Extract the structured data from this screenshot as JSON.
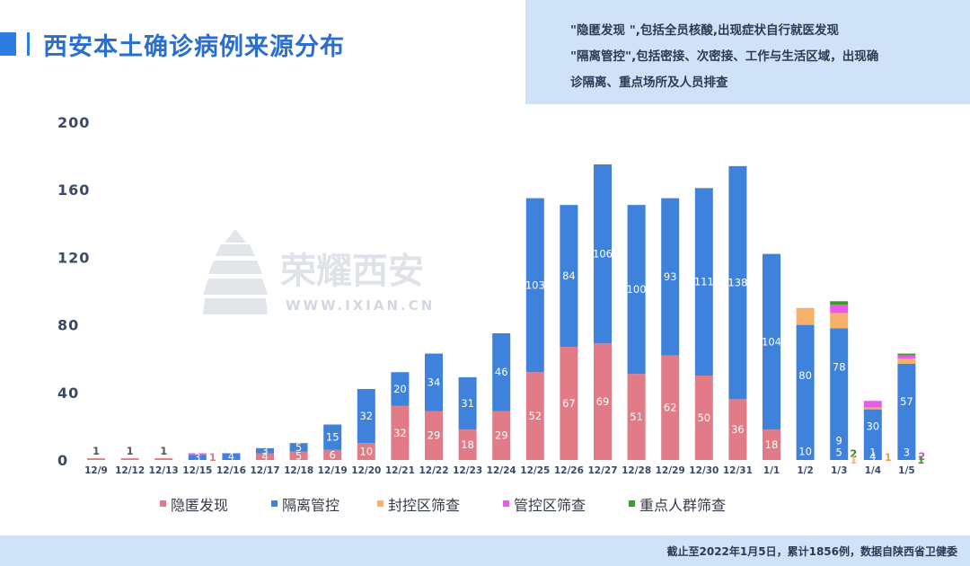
{
  "title": "西安本土确诊病例来源分布",
  "notes": [
    "\"隐匿发现 \",包括全员核酸,出现症状自行就医发现",
    "\"隔离管控\",包括密接、次密接、工作与生活区域，出现确",
    "诊隔离、重点场所及人员排查"
  ],
  "footer": "截止至2022年1月5日，累计1856例，数据自陕西省卫健委",
  "watermark": {
    "name": "荣耀西安",
    "url": "WWW.IXIAN.CN"
  },
  "colors": {
    "hidden": "#e07b87",
    "isolation": "#3e82db",
    "sealed": "#f5b16a",
    "controlled": "#e95ce8",
    "key": "#3f9a2f"
  },
  "chart_data": {
    "type": "bar",
    "stacked": true,
    "categories": [
      "12/9",
      "12/12",
      "12/13",
      "12/15",
      "12/16",
      "12/17",
      "12/18",
      "12/19",
      "12/20",
      "12/21",
      "12/22",
      "12/23",
      "12/24",
      "12/25",
      "12/26",
      "12/27",
      "12/28",
      "12/29",
      "12/30",
      "12/31",
      "1/1",
      "1/2",
      "1/3",
      "1/4",
      "1/5"
    ],
    "series": [
      {
        "name": "隐匿发现",
        "key": "hidden",
        "values": [
          1,
          1,
          1,
          0,
          0,
          4,
          5,
          6,
          10,
          32,
          29,
          18,
          29,
          52,
          67,
          69,
          51,
          62,
          50,
          36,
          18,
          0,
          0,
          0,
          0
        ],
        "labels": [
          "1",
          "1",
          "1",
          "",
          "",
          "4",
          "5",
          "6",
          "10",
          "32",
          "29",
          "18",
          "29",
          "52",
          "67",
          "69",
          "51",
          "62",
          "50",
          "36",
          "18",
          "",
          "",
          "",
          ""
        ]
      },
      {
        "name": "隔离管控",
        "key": "isolation",
        "values": [
          0,
          0,
          0,
          3,
          4,
          3,
          5,
          15,
          32,
          20,
          34,
          31,
          46,
          103,
          84,
          106,
          100,
          93,
          111,
          138,
          104,
          80,
          78,
          30,
          57
        ],
        "labels": [
          "",
          "",
          "",
          "3",
          "4",
          "3",
          "5",
          "15",
          "32",
          "20",
          "34",
          "31",
          "46",
          "103",
          "84",
          "106",
          "100",
          "93",
          "111",
          "138",
          "104",
          "80",
          "78",
          "30",
          "57"
        ]
      },
      {
        "name": "封控区筛查",
        "key": "sealed",
        "values": [
          0,
          0,
          0,
          0,
          0,
          0,
          0,
          0,
          0,
          0,
          0,
          0,
          0,
          0,
          0,
          0,
          0,
          0,
          0,
          0,
          0,
          10,
          9,
          1,
          3
        ],
        "labels": [
          "",
          "",
          "",
          "",
          "",
          "",
          "",
          "",
          "",
          "",
          "",
          "",
          "",
          "",
          "",
          "",
          "",
          "",
          "",
          "",
          "",
          "10",
          "9",
          "1",
          "3"
        ]
      },
      {
        "name": "管控区筛查",
        "key": "controlled",
        "values": [
          0,
          0,
          0,
          1,
          0,
          0,
          0,
          0,
          0,
          0,
          0,
          0,
          0,
          0,
          0,
          0,
          0,
          0,
          0,
          0,
          0,
          0,
          5,
          4,
          2
        ],
        "labels": [
          "",
          "",
          "",
          "1",
          "",
          "",
          "",
          "",
          "",
          "",
          "",
          "",
          "",
          "",
          "",
          "",
          "",
          "",
          "",
          "",
          "",
          "",
          "5",
          "4",
          "2"
        ]
      },
      {
        "name": "重点人群筛查",
        "key": "key",
        "values": [
          0,
          0,
          0,
          0,
          0,
          0,
          0,
          0,
          0,
          0,
          0,
          0,
          0,
          0,
          0,
          0,
          0,
          0,
          0,
          0,
          0,
          0,
          2,
          0,
          1
        ],
        "labels": [
          "",
          "",
          "",
          "",
          "",
          "",
          "",
          "",
          "",
          "",
          "",
          "",
          "",
          "",
          "",
          "",
          "",
          "",
          "",
          "",
          "",
          "",
          "2",
          "",
          ""
        ]
      }
    ],
    "extra_labels": [
      {
        "category": "1/3",
        "text": "1",
        "color": "#f5b16a"
      },
      {
        "category": "1/5",
        "text": "1",
        "color": "#3f9a2f"
      }
    ],
    "yticks": [
      0,
      40,
      80,
      120,
      160,
      200
    ],
    "ylim": [
      0,
      200
    ],
    "legend": [
      "隐匿发现",
      "隔离管控",
      "封控区筛查",
      "管控区筛查",
      "重点人群筛查"
    ],
    "legend_position": "bottom"
  }
}
